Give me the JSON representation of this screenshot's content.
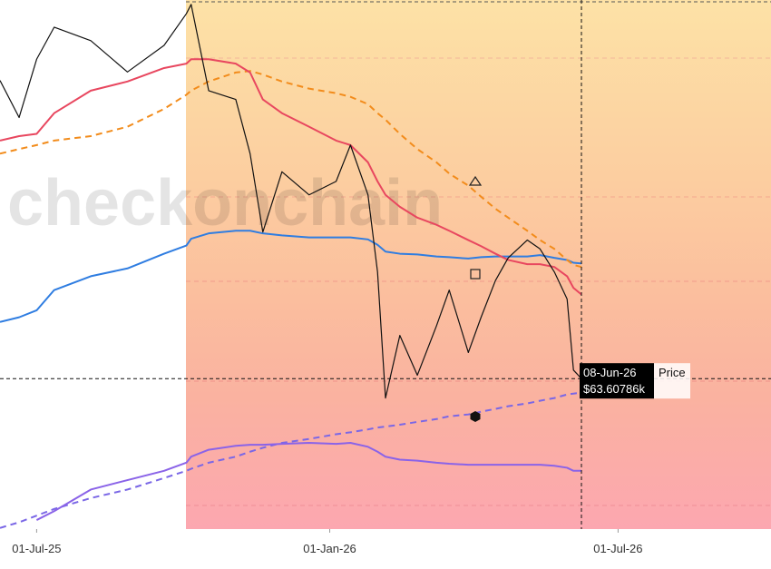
{
  "chart_data": {
    "type": "line",
    "watermark": "checkonchain",
    "log_y": true,
    "xlim": [
      "08-Jun-25",
      "05-Oct-26"
    ],
    "xticks": [
      "01-Jul-25",
      "01-Jan-26",
      "01-Jul-26"
    ],
    "ylim": [
      48.4,
      126.5
    ],
    "x": [
      "08-Jun-25",
      "20-Jun-25",
      "01-Jul-25",
      "12-Jul-25",
      "04-Aug-25",
      "27-Aug-25",
      "19-Sep-25",
      "03-Oct-25",
      "06-Oct-25",
      "17-Oct-25",
      "03-Nov-25",
      "12-Nov-25",
      "20-Nov-25",
      "02-Dec-25",
      "19-Dec-25",
      "05-Jan-26",
      "14-Jan-26",
      "25-Jan-26",
      "31-Jan-26",
      "05-Feb-26",
      "14-Feb-26",
      "25-Feb-26",
      "09-Mar-26",
      "17-Mar-26",
      "29-Mar-26",
      "06-Apr-26",
      "15-Apr-26",
      "23-Apr-26",
      "05-May-26",
      "13-May-26",
      "22-May-26",
      "30-May-26",
      "03-Jun-26",
      "08-Jun-26"
    ],
    "series": [
      {
        "name": "Price",
        "color": "#111111",
        "dashed": false,
        "values": [
          109.3,
          102.2,
          113.6,
          120.4,
          117.5,
          111.0,
          116.5,
          123.4,
          125.5,
          107.3,
          105.6,
          95.7,
          83.0,
          92.6,
          88.8,
          91.0,
          97.2,
          88.8,
          77.2,
          61.4,
          68.8,
          64.0,
          70.0,
          74.7,
          66.7,
          71.1,
          76.0,
          79.2,
          81.8,
          80.5,
          77.2,
          73.5,
          64.6,
          63.6
        ]
      },
      {
        "color": "#e8475f",
        "dashed": false,
        "values": [
          98.0,
          98.8,
          99.2,
          103.0,
          107.3,
          109.1,
          111.8,
          112.7,
          113.6,
          113.6,
          112.7,
          110.9,
          105.6,
          103.0,
          100.5,
          98.0,
          97.2,
          94.2,
          91.0,
          88.8,
          86.9,
          85.2,
          84.1,
          83.2,
          81.8,
          80.9,
          79.8,
          78.9,
          78.3,
          78.3,
          77.9,
          76.6,
          75.0,
          74.1
        ]
      },
      {
        "color": "#f28c1c",
        "dashed": true,
        "values": [
          95.7,
          96.5,
          97.2,
          98.0,
          98.8,
          100.5,
          103.8,
          106.5,
          107.3,
          109.1,
          110.9,
          111.2,
          110.5,
          109.1,
          107.7,
          106.8,
          106.1,
          104.7,
          103.0,
          101.8,
          99.2,
          96.5,
          94.2,
          92.3,
          90.3,
          88.5,
          86.6,
          85.2,
          83.2,
          81.8,
          80.5,
          78.9,
          78.2,
          77.9
        ]
      },
      {
        "color": "#2f7de1",
        "dashed": false,
        "values": [
          70.5,
          71.1,
          72.0,
          74.7,
          76.6,
          77.7,
          79.8,
          81.0,
          82.0,
          82.8,
          83.2,
          83.2,
          82.8,
          82.5,
          82.2,
          82.2,
          82.2,
          81.9,
          81.1,
          80.1,
          79.8,
          79.7,
          79.4,
          79.3,
          79.1,
          79.3,
          79.4,
          79.4,
          79.4,
          79.6,
          79.2,
          78.9,
          78.5,
          78.4
        ]
      },
      {
        "color": "#8a63e8",
        "dashed": false,
        "values": [
          null,
          null,
          49.2,
          50.0,
          52.0,
          52.9,
          53.8,
          54.6,
          55.2,
          55.9,
          56.3,
          56.4,
          56.4,
          56.5,
          56.6,
          56.5,
          56.6,
          56.2,
          55.7,
          55.2,
          54.9,
          54.8,
          54.6,
          54.5,
          54.4,
          54.4,
          54.4,
          54.4,
          54.4,
          54.4,
          54.3,
          54.1,
          53.8,
          53.8
        ]
      },
      {
        "color": "#7a67e6",
        "dashed": true,
        "values": [
          48.5,
          49.0,
          49.6,
          50.2,
          51.2,
          52.0,
          53.1,
          53.8,
          54.0,
          54.6,
          55.2,
          55.7,
          56.1,
          56.6,
          57.0,
          57.5,
          57.7,
          58.0,
          58.2,
          58.3,
          58.5,
          58.8,
          59.1,
          59.4,
          59.6,
          59.9,
          60.2,
          60.5,
          60.8,
          61.1,
          61.4,
          61.8,
          61.9,
          62.0
        ]
      }
    ],
    "tooltip": {
      "x": "08-Jun-26",
      "value": 63.60786,
      "value_label": "$63.60786k"
    }
  }
}
